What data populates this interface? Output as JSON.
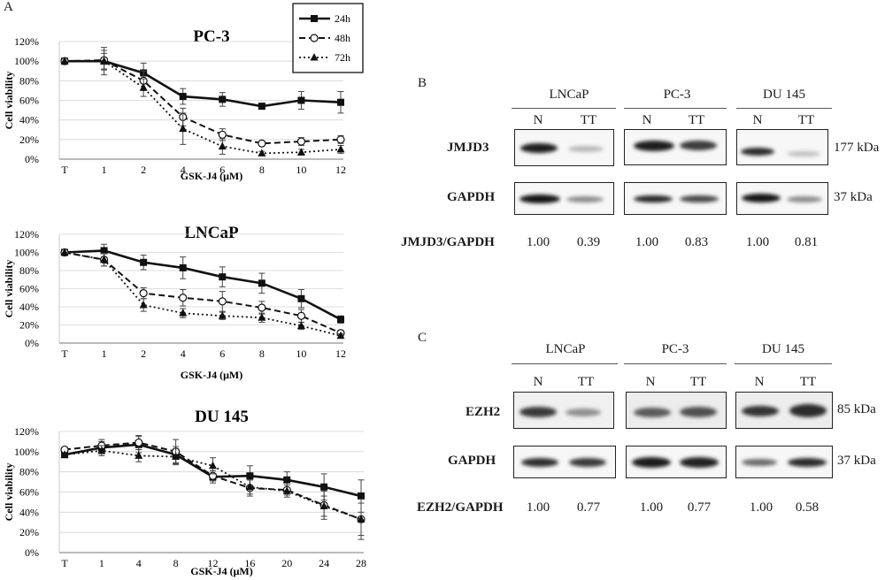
{
  "panel_labels": {
    "a": "A",
    "b": "B",
    "c": "C"
  },
  "chart_data": [
    {
      "type": "line",
      "title": "PC-3",
      "xlabel": "GSK-J4 (μM)",
      "ylabel": "Cell viability",
      "categories": [
        "T",
        "1",
        "2",
        "4",
        "6",
        "8",
        "10",
        "12"
      ],
      "y_ticks": [
        "0%",
        "20%",
        "40%",
        "60%",
        "80%",
        "100%",
        "120%"
      ],
      "ylim": [
        0,
        120
      ],
      "legend": "top-right",
      "series": [
        {
          "name": "24h",
          "values": [
            100,
            100,
            88,
            64,
            61,
            54,
            60,
            58
          ],
          "errors": [
            0,
            14,
            10,
            8,
            7,
            3,
            9,
            11
          ]
        },
        {
          "name": "48h",
          "values": [
            100,
            101,
            80,
            43,
            25,
            16,
            18,
            20
          ],
          "errors": [
            0,
            10,
            10,
            9,
            6,
            2,
            4,
            4
          ]
        },
        {
          "name": "72h",
          "values": [
            100,
            100,
            73,
            31,
            13,
            6,
            7,
            10
          ],
          "errors": [
            0,
            8,
            9,
            16,
            8,
            2,
            3,
            4
          ]
        }
      ]
    },
    {
      "type": "line",
      "title": "LNCaP",
      "xlabel": "GSK-J4 (μM)",
      "ylabel": "Cell viability",
      "categories": [
        "T",
        "1",
        "2",
        "4",
        "6",
        "8",
        "10",
        "12"
      ],
      "y_ticks": [
        "0%",
        "20%",
        "40%",
        "60%",
        "80%",
        "100%",
        "120%"
      ],
      "ylim": [
        0,
        120
      ],
      "series": [
        {
          "name": "24h",
          "values": [
            100,
            102,
            89,
            83,
            73,
            66,
            49,
            26
          ],
          "errors": [
            0,
            7,
            8,
            12,
            11,
            11,
            10,
            4
          ]
        },
        {
          "name": "48h",
          "values": [
            100,
            92,
            55,
            50,
            46,
            39,
            30,
            11
          ],
          "errors": [
            0,
            7,
            6,
            9,
            11,
            7,
            7,
            3
          ]
        },
        {
          "name": "72h",
          "values": [
            100,
            92,
            42,
            33,
            30,
            28,
            19,
            8
          ],
          "errors": [
            0,
            7,
            7,
            5,
            4,
            5,
            4,
            2
          ]
        }
      ]
    },
    {
      "type": "line",
      "title": "DU 145",
      "xlabel": "GSK-J4 (μM)",
      "ylabel": "Cell viability",
      "categories": [
        "T",
        "1",
        "4",
        "8",
        "12",
        "16",
        "20",
        "24",
        "28"
      ],
      "y_ticks": [
        "0%",
        "20%",
        "40%",
        "60%",
        "80%",
        "100%",
        "120%"
      ],
      "ylim": [
        0,
        120
      ],
      "series": [
        {
          "name": "24h",
          "values": [
            97,
            104,
            107,
            97,
            75,
            76,
            72,
            65,
            56
          ],
          "errors": [
            0,
            6,
            8,
            8,
            6,
            10,
            8,
            13,
            16
          ]
        },
        {
          "name": "48h",
          "values": [
            102,
            106,
            109,
            100,
            76,
            64,
            62,
            47,
            33
          ],
          "errors": [
            0,
            6,
            7,
            12,
            5,
            8,
            5,
            14,
            20
          ]
        },
        {
          "name": "72h",
          "values": [
            97,
            101,
            96,
            95,
            86,
            65,
            61,
            46,
            33
          ],
          "errors": [
            0,
            5,
            6,
            8,
            8,
            7,
            6,
            10,
            16
          ]
        }
      ]
    }
  ],
  "blot_b": {
    "cell_lines": [
      "LNCaP",
      "PC-3",
      "DU 145"
    ],
    "lanes": [
      "N",
      "TT",
      "N",
      "TT",
      "N",
      "TT"
    ],
    "rows": [
      {
        "protein": "JMJD3",
        "kda": "177 kDa"
      },
      {
        "protein": "GAPDH",
        "kda": "37 kDa"
      }
    ],
    "ratio_label": "JMJD3/GAPDH",
    "ratios": [
      "1.00",
      "0.39",
      "1.00",
      "0.83",
      "1.00",
      "0.81"
    ]
  },
  "blot_c": {
    "cell_lines": [
      "LNCaP",
      "PC-3",
      "DU 145"
    ],
    "lanes": [
      "N",
      "TT",
      "N",
      "TT",
      "N",
      "TT"
    ],
    "rows": [
      {
        "protein": "EZH2",
        "kda": "85 kDa"
      },
      {
        "protein": "GAPDH",
        "kda": "37 kDa"
      }
    ],
    "ratio_label": "EZH2/GAPDH",
    "ratios": [
      "1.00",
      "0.77",
      "1.00",
      "0.77",
      "1.00",
      "0.58"
    ]
  }
}
